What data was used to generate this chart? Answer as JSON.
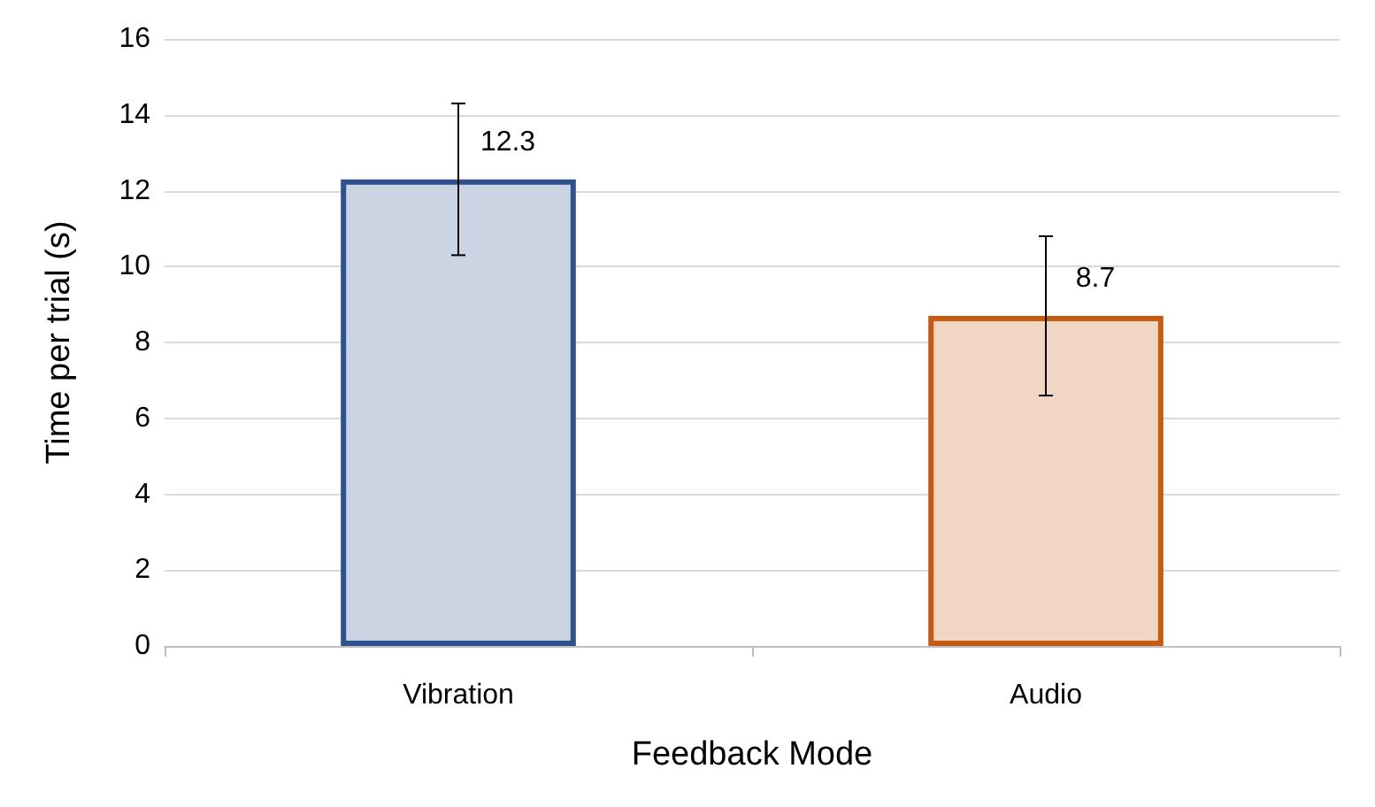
{
  "chart_data": {
    "type": "bar",
    "xlabel": "Feedback Mode",
    "ylabel": "Time per trial (s)",
    "categories": [
      "Vibration",
      "Audio"
    ],
    "values": [
      12.3,
      8.7
    ],
    "colors": [
      "#2f528f",
      "#c55a11"
    ],
    "errors": [
      2.0,
      2.1
    ],
    "ylim": [
      0,
      16
    ],
    "yticks": [
      0,
      2,
      4,
      6,
      8,
      10,
      12,
      14,
      16
    ],
    "grid": "y",
    "data_labels": true
  }
}
